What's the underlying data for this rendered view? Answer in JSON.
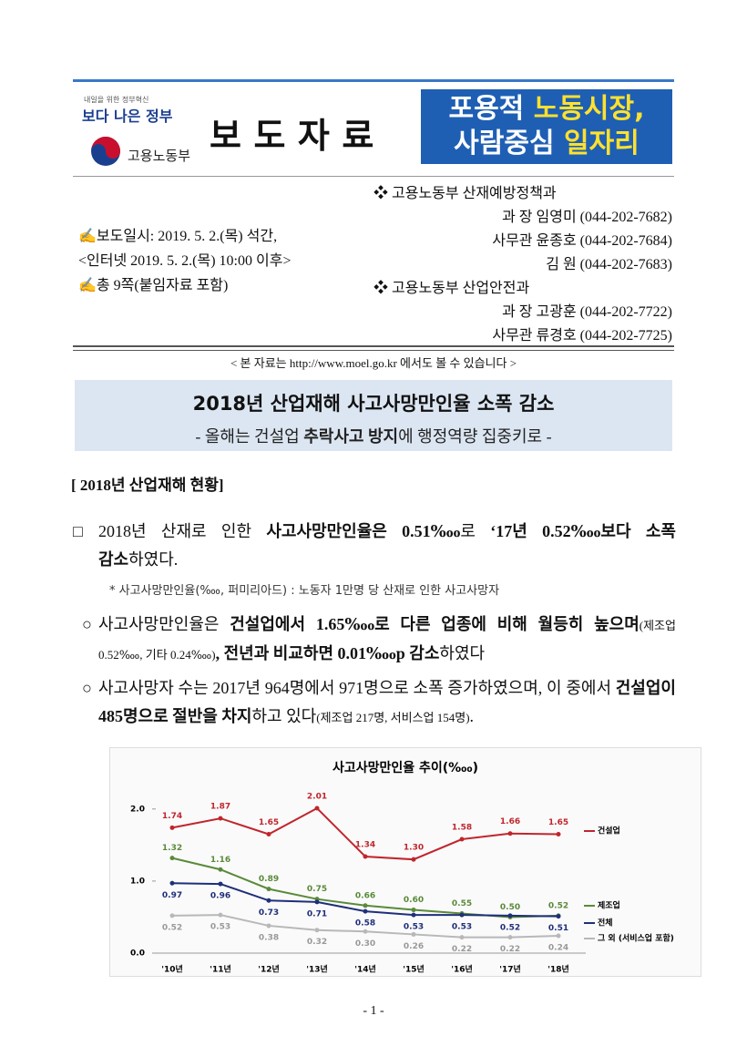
{
  "header": {
    "slogan_small": "내일을 위한 정부혁신",
    "slogan": "보다 나은 정부",
    "ministry": "고용노동부",
    "title": "보 도 자 료",
    "banner": [
      [
        "포용적",
        "노동시장,"
      ],
      [
        "사람중심",
        "일자리"
      ]
    ]
  },
  "release": {
    "date": "✍보도일시: 2019. 5. 2.(목) 석간,",
    "internet": "<인터넷 2019. 5. 2.(목) 10:00 이후>",
    "pages": "✍총 9쪽(붙임자료 포함)"
  },
  "contacts": [
    {
      "dept": "❖ 고용노동부 산재예방정책과",
      "people": [
        "과 장 임영미 (044-202-7682)",
        "사무관 윤종호 (044-202-7684)",
        "김 원 (044-202-7683)"
      ]
    },
    {
      "dept": "❖ 고용노동부 산업안전과",
      "people": [
        "과 장 고광훈 (044-202-7722)",
        "사무관 류경호 (044-202-7725)"
      ]
    }
  ],
  "notice": "< 본 자료는 http://www.moel.go.kr 에서도 볼 수 있습니다 >",
  "headline": {
    "title": "2018년 산업재해 사고사망만인율 소폭 감소",
    "subtitle": [
      "- 올해는 건설업 ",
      "추락사고 방지",
      "에 행정역량 집중키로 -"
    ]
  },
  "section": "[ 2018년 산업재해 현황]",
  "paragraphs": [
    {
      "bullet": "□",
      "runs": [
        "2018년 산재로 인한 ",
        "사고사망만인율은 0.51‱",
        "로 ",
        "‘17년 0.52‱보다 소폭 감소",
        "하였다."
      ],
      "note": "* 사고사망만인율(‱, 퍼미리아드) : 노동자 1만명 당 산재로 인한 사고사망자"
    },
    {
      "bullet": "○",
      "runs": [
        "사고사망만인율은 ",
        "건설업에서 1.65‱로 다른 업종에 비해 월등히 높으며",
        "(제조업 0.52‱, 기타 0.24‱)",
        ", 전년과 비교하면 0.01‱p 감소",
        "하였다"
      ]
    },
    {
      "bullet": "○",
      "runs": [
        "사고사망자 수는 2017년 964명에서 971명으로 소폭 증가하였으며, 이 중에서 ",
        "건설업이 485명으로 절반을 차지",
        "하고 있다",
        "(제조업 217명, 서비스업 154명)",
        "."
      ]
    }
  ],
  "chart_data": {
    "type": "line",
    "title": "사고사망만인율 추이(‱)",
    "categories": [
      "'10년",
      "'11년",
      "'12년",
      "'13년",
      "'14년",
      "'15년",
      "'16년",
      "'17년",
      "'18년"
    ],
    "series": [
      {
        "name": "건설업",
        "color": "#c0262d",
        "values": [
          1.74,
          1.87,
          1.65,
          2.01,
          1.34,
          1.3,
          1.58,
          1.66,
          1.65
        ],
        "value_labels": [
          "1.74",
          "1.87",
          "1.65",
          "2.01",
          "1.34",
          "1.30",
          "1.58",
          "1.66",
          "1.65"
        ]
      },
      {
        "name": "제조업",
        "color": "#5a8a3a",
        "values": [
          1.32,
          1.16,
          0.89,
          0.75,
          0.66,
          0.6,
          0.55,
          0.5,
          0.52
        ],
        "value_labels": [
          "1.32",
          "1.16",
          "0.89",
          "0.75",
          "0.66",
          "0.60",
          "0.55",
          "0.50",
          "0.52"
        ]
      },
      {
        "name": "전체",
        "color": "#1f2f7a",
        "values": [
          0.97,
          0.96,
          0.73,
          0.71,
          0.58,
          0.53,
          0.53,
          0.52,
          0.51
        ],
        "value_labels": [
          "0.97",
          "0.96",
          "0.73",
          "0.71",
          "0.58",
          "0.53",
          "0.53",
          "0.52",
          "0.51"
        ]
      },
      {
        "name": "그 외 (서비스업 포함)",
        "color": "#b8b8b8",
        "values": [
          0.52,
          0.53,
          0.38,
          0.32,
          0.3,
          0.26,
          0.22,
          0.22,
          0.24
        ],
        "value_labels": [
          "0.52",
          "0.53",
          "0.38",
          "0.32",
          "0.30",
          "0.26",
          "0.22",
          "0.22",
          "0.24"
        ]
      }
    ],
    "ylim": [
      0,
      2.2
    ],
    "yticks": [
      {
        "value": 0,
        "label": "0.0"
      },
      {
        "value": 1,
        "label": "1.0"
      },
      {
        "value": 2,
        "label": "2.0"
      }
    ],
    "grid": false,
    "legend": "right"
  },
  "page_number": "- 1 -"
}
